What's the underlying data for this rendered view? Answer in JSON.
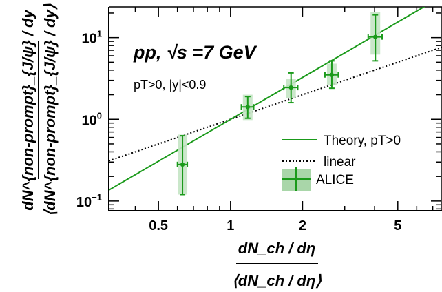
{
  "chart_data": {
    "type": "scatter",
    "xscale": "log",
    "yscale": "log",
    "xlim": [
      0.31,
      7.65
    ],
    "ylim": [
      0.076,
      23.8
    ],
    "x_ticks": [
      {
        "value": 0.5,
        "label": "0.5"
      },
      {
        "value": 1,
        "label": "1"
      },
      {
        "value": 2,
        "label": "2"
      },
      {
        "value": 5,
        "label": "5"
      }
    ],
    "y_ticks": [
      {
        "value": 0.1,
        "label_base": "10",
        "label_exp": "−1"
      },
      {
        "value": 1,
        "label_base": "10",
        "label_exp": "0"
      },
      {
        "value": 10,
        "label_base": "10",
        "label_exp": "1"
      }
    ],
    "xlabel": {
      "numerator": "dN_ch / dη",
      "denominator": "⟨dN_ch / dη⟩"
    },
    "ylabel": {
      "numerator": "dN^{non-prompt}_{J/ψ} / dy",
      "denominator": "⟨dN^{non-prompt}_{J/ψ} / dy⟩"
    },
    "annotations": {
      "system": "pp, √s =7 GeV",
      "cuts": "pT>0, |y|<0.9"
    },
    "legend": {
      "position": "right",
      "entries": [
        {
          "label": "Theory, pT>0",
          "style": "solid",
          "color": "#1a9a1a"
        },
        {
          "label": "linear",
          "style": "dotted",
          "color": "#000000"
        },
        {
          "label": "ALICE",
          "style": "marker-box",
          "color": "#1a9a1a"
        }
      ]
    },
    "series": [
      {
        "name": "ALICE",
        "points": [
          {
            "x": 0.63,
            "y": 0.28,
            "xerr": 0.03,
            "ylow": 0.12,
            "yhigh": 0.63,
            "sys_ylow": 0.12,
            "sys_yhigh": 0.65
          },
          {
            "x": 1.18,
            "y": 1.42,
            "xerr": 0.07,
            "ylow": 1.03,
            "yhigh": 1.9,
            "sys_ylow": 0.98,
            "sys_yhigh": 2.0
          },
          {
            "x": 1.79,
            "y": 2.45,
            "xerr": 0.12,
            "ylow": 1.6,
            "yhigh": 3.7,
            "sys_ylow": 1.8,
            "sys_yhigh": 3.1
          },
          {
            "x": 2.65,
            "y": 3.5,
            "xerr": 0.17,
            "ylow": 2.4,
            "yhigh": 5.2,
            "sys_ylow": 2.6,
            "sys_yhigh": 4.8
          },
          {
            "x": 4.03,
            "y": 10.2,
            "xerr": 0.27,
            "ylow": 5.2,
            "yhigh": 19.0,
            "sys_ylow": 6.2,
            "sys_yhigh": 20.5
          }
        ]
      },
      {
        "name": "Theory, pT>0",
        "type": "line",
        "x": [
          0.31,
          7.65
        ],
        "y": [
          0.136,
          32.0
        ]
      },
      {
        "name": "linear",
        "type": "line",
        "x": [
          0.31,
          7.65
        ],
        "y": [
          0.31,
          7.65
        ]
      }
    ],
    "colors": {
      "theory": "#1a9a1a",
      "alice": "#1a9a1a",
      "alice_box": "#c4e4c4",
      "linear": "#000000",
      "axis": "#000000"
    }
  }
}
